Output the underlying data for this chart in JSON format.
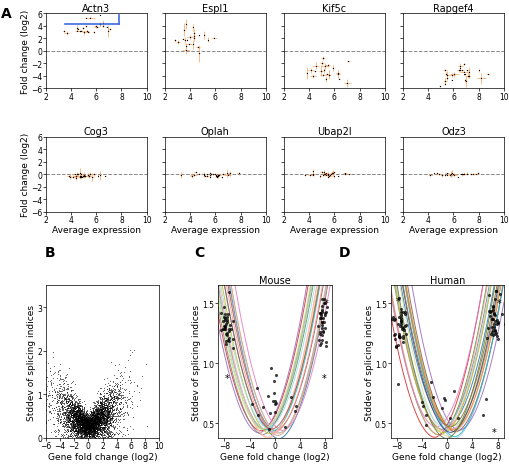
{
  "panel_A_titles_row1": [
    "Actn3",
    "Espl1",
    "Kif5c",
    "Rapgef4"
  ],
  "panel_A_titles_row2": [
    "Cog3",
    "Oplah",
    "Ubap2l",
    "Odz3"
  ],
  "panel_A_ylabel": "Fold change (log2)",
  "panel_A_xlabel": "Average expression",
  "panel_A_xlim": [
    2,
    10
  ],
  "panel_A_ylim": [
    -6,
    6
  ],
  "panel_A_xticks": [
    2,
    4,
    6,
    8,
    10
  ],
  "panel_A_yticks": [
    -6,
    -4,
    -2,
    0,
    2,
    4,
    6
  ],
  "panel_B_xlabel": "Gene fold change (log2)",
  "panel_B_ylabel": "Stddev of splicing indices",
  "panel_B_xlim": [
    -6,
    10
  ],
  "panel_B_ylim": [
    0,
    3.5
  ],
  "panel_B_xticks": [
    -6,
    -4,
    -2,
    0,
    2,
    4,
    6,
    8,
    10
  ],
  "panel_B_yticks": [
    0,
    1,
    2,
    3
  ],
  "panel_C_title": "Mouse",
  "panel_C_xlabel": "Gene fold change (log2)",
  "panel_C_ylabel": "Stddev of splicing indices",
  "panel_C_xlim": [
    -9,
    9
  ],
  "panel_C_ylim": [
    0.38,
    1.65
  ],
  "panel_C_xticks": [
    -8,
    -4,
    0,
    4,
    8
  ],
  "panel_C_yticks": [
    0.5,
    1.0,
    1.5
  ],
  "panel_D_title": "Human",
  "panel_D_xlabel": "Gene fold change (log2)",
  "panel_D_ylabel": "Stddev of splicing indices",
  "panel_D_xlim": [
    -9,
    9
  ],
  "panel_D_ylim": [
    0.38,
    1.65
  ],
  "panel_D_xticks": [
    -8,
    -4,
    0,
    4,
    8
  ],
  "panel_D_yticks": [
    0.5,
    1.0,
    1.5
  ],
  "orange_color": "#F4A460",
  "blue_color": "#4169E1",
  "title_fontsize": 7,
  "tick_fontsize": 5.5,
  "axis_label_fontsize": 6.5,
  "panel_label_fontsize": 10,
  "mouse_colors": [
    "#1f77b4",
    "#ff7f0e",
    "#2ca02c",
    "#d62728",
    "#9467bd",
    "#8c564b",
    "#e377c2",
    "#7f7f7f",
    "#bcbd22",
    "#17becf",
    "#aec7e8",
    "#ffbb78",
    "#98df8a",
    "#ff9896",
    "#c5b0d5",
    "#c49c94",
    "#f7b6d2",
    "#dbdb8d",
    "#9edae5",
    "#ad494a"
  ],
  "human_colors": [
    "#1f77b4",
    "#aec7e8",
    "#ffbb78",
    "#2ca02c",
    "#98df8a",
    "#d62728",
    "#ff9896",
    "#9467bd",
    "#c5b0d5",
    "#8c564b",
    "#c49c94",
    "#e377c2",
    "#f7b6d2",
    "#7f7f7f",
    "#bcbd22",
    "#dbdb8d",
    "#17becf",
    "#9edae5",
    "#ff7f0e",
    "#393b79",
    "#637939",
    "#8c6d31"
  ]
}
